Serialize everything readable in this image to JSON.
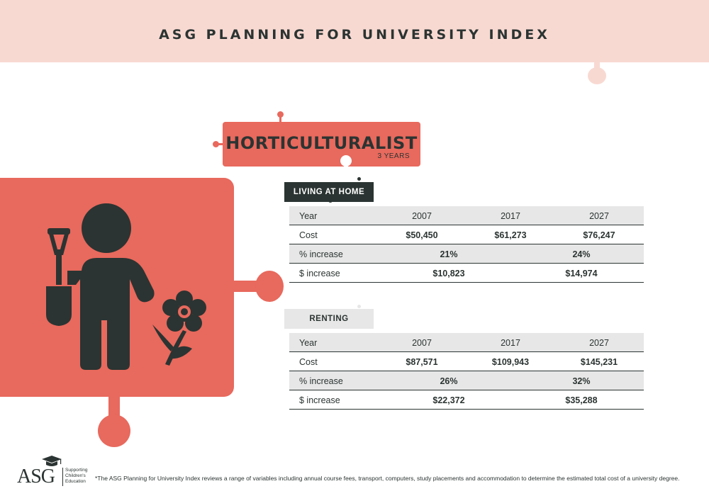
{
  "header": {
    "title": "ASG PLANNING FOR UNIVERSITY INDEX"
  },
  "occupation": {
    "title": "HORTICULTURALIST",
    "duration": "3 YEARS"
  },
  "illustration": {
    "icon": "gardener-with-shovel-and-flower-icon"
  },
  "living_at_home": {
    "label": "LIVING AT HOME",
    "years_label": "Year",
    "years": [
      "2007",
      "2017",
      "2027"
    ],
    "cost_label": "Cost",
    "costs": [
      "$50,450",
      "$61,273",
      "$76,247"
    ],
    "pct_label": "% increase",
    "pct": [
      "21%",
      "24%"
    ],
    "dollar_label": "$ increase",
    "dollar": [
      "$10,823",
      "$14,974"
    ]
  },
  "renting": {
    "label": "RENTING",
    "years_label": "Year",
    "years": [
      "2007",
      "2017",
      "2027"
    ],
    "cost_label": "Cost",
    "costs": [
      "$87,571",
      "$109,943",
      "$145,231"
    ],
    "pct_label": "% increase",
    "pct": [
      "26%",
      "32%"
    ],
    "dollar_label": "$ increase",
    "dollar": [
      "$22,372",
      "$35,288"
    ]
  },
  "footer": {
    "logo_text": "ASG",
    "logo_tagline": [
      "Supporting",
      "Children's",
      "Education"
    ],
    "note": "*The ASG Planning for University Index reviews a range of variables including annual course fees, transport, computers, study placements and accommodation to determine the estimated total cost of a university degree."
  },
  "colors": {
    "accent": "#e8695d",
    "dark": "#2b3432",
    "band": "#f8d9d2",
    "shade": "#e7e7e7"
  }
}
